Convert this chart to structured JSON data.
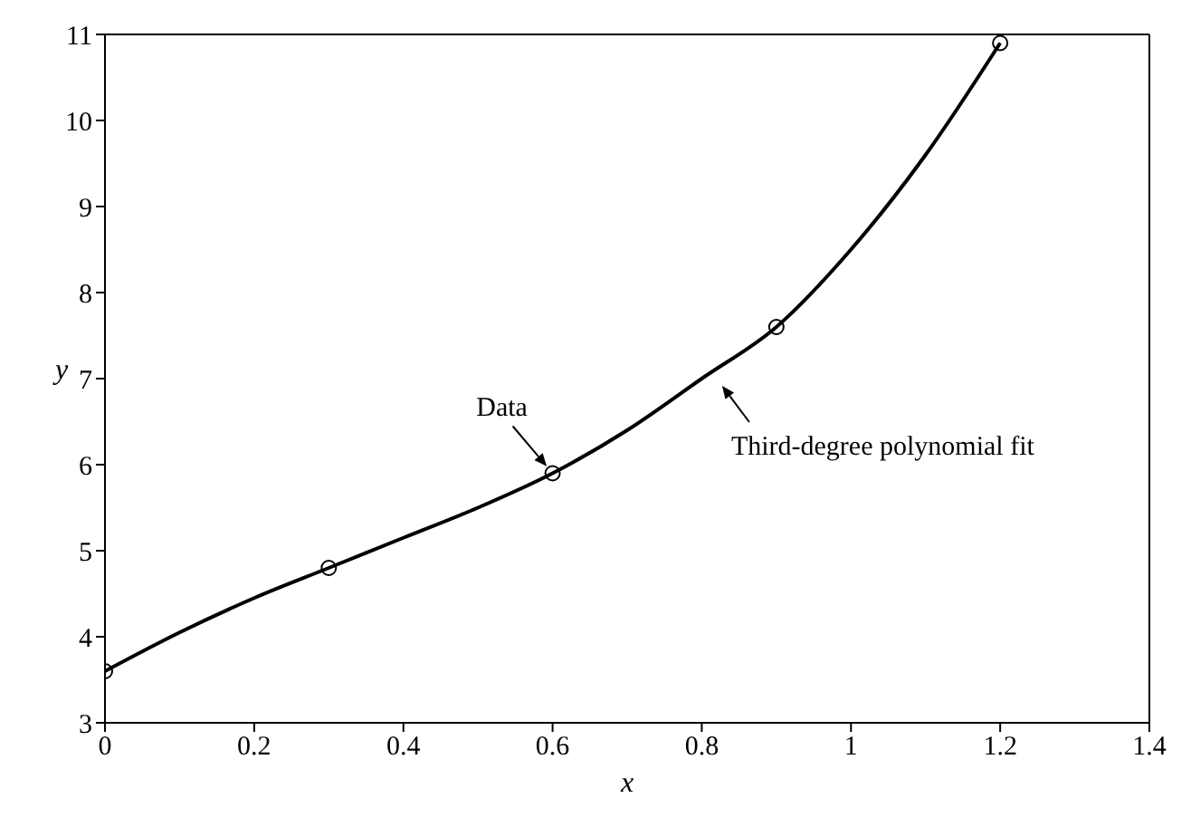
{
  "chart_data": {
    "type": "scatter",
    "xlabel": "x",
    "ylabel": "y",
    "xlim": [
      0,
      1.4
    ],
    "xticks": [
      0,
      0.2,
      0.4,
      0.6,
      0.8,
      1,
      1.2,
      1.4
    ],
    "ylim": [
      3,
      11
    ],
    "yticks": [
      3,
      4,
      5,
      6,
      7,
      8,
      9,
      10,
      11
    ],
    "series": [
      {
        "type": "scatter",
        "color": "#000000",
        "marker": "circle",
        "x": [
          0,
          0.3,
          0.6,
          0.9,
          1.2
        ],
        "values": [
          3.6,
          4.8,
          5.9,
          7.6,
          10.9
        ]
      },
      {
        "type": "line",
        "color": "#000000",
        "marker": "none",
        "line_style": "solid",
        "x": [
          0,
          0.1,
          0.2,
          0.3,
          0.4,
          0.5,
          0.6,
          0.7,
          0.8,
          0.9,
          1.0,
          1.1,
          1.2
        ],
        "values": [
          3.6,
          4.05,
          4.45,
          4.8,
          5.15,
          5.5,
          5.9,
          6.4,
          7.0,
          7.6,
          8.5,
          9.6,
          10.9
        ]
      }
    ],
    "annotations": [
      {
        "text": "Data",
        "x": 0.6,
        "y": 5.9
      },
      {
        "text": "Third-degree polynomial fit",
        "x": 0.82,
        "y": 7.0
      }
    ]
  }
}
